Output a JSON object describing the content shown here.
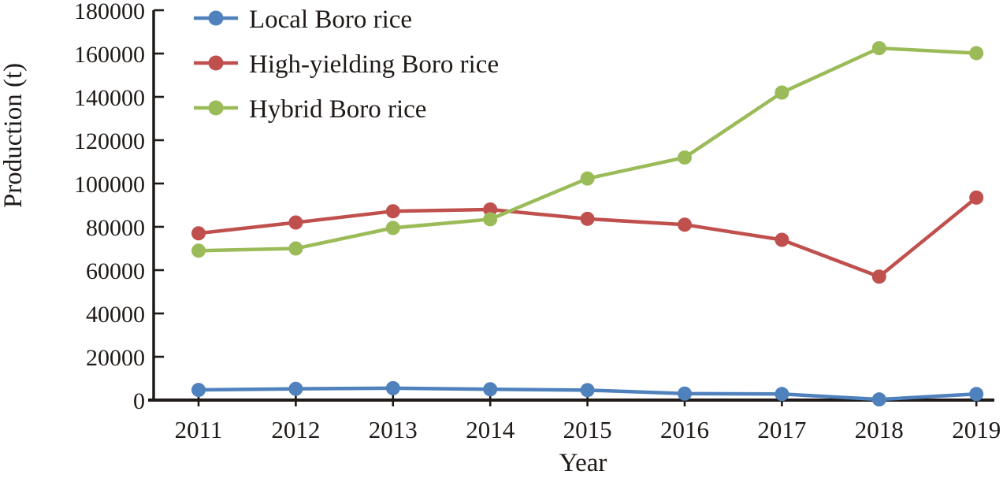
{
  "chart_data": {
    "type": "line",
    "title": "",
    "xlabel": "Year",
    "ylabel": "Production (t)",
    "categories": [
      "2011",
      "2012",
      "2013",
      "2014",
      "2015",
      "2016",
      "2017",
      "2018",
      "2019"
    ],
    "yticks": [
      0,
      20000,
      40000,
      60000,
      80000,
      100000,
      120000,
      140000,
      160000,
      180000
    ],
    "ylim": [
      0,
      180000
    ],
    "grid": false,
    "legend_position": "top-left",
    "axis_color": "#1f1a17",
    "text_color": "#1f1a17",
    "background": "#ffffff",
    "series": [
      {
        "name": "Local Boro rice",
        "color": "#4F81BD",
        "values": [
          4700,
          5200,
          5500,
          5000,
          4600,
          3000,
          2800,
          300,
          2800
        ]
      },
      {
        "name": "High-yielding Boro rice",
        "color": "#C0504D",
        "values": [
          77000,
          82000,
          87200,
          88000,
          83700,
          81000,
          74000,
          57000,
          93500
        ]
      },
      {
        "name": "Hybrid Boro rice",
        "color": "#9BBB59",
        "values": [
          69000,
          70000,
          79500,
          83500,
          102300,
          112000,
          142000,
          162500,
          160200
        ]
      }
    ]
  }
}
